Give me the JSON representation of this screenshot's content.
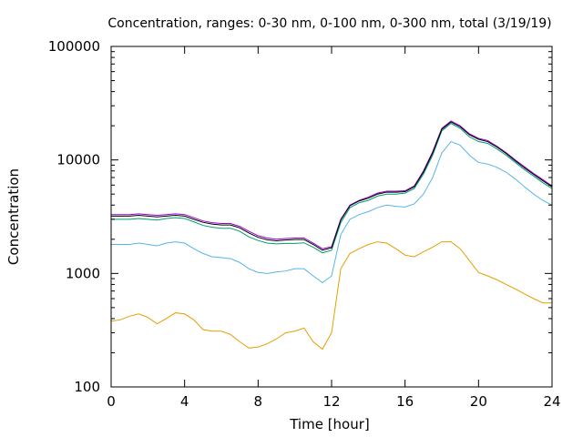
{
  "chart_data": {
    "type": "line",
    "title": "Concentration, ranges: 0-30 nm, 0-100 nm, 0-300 nm, total (3/19/19)",
    "xlabel": "Time [hour]",
    "ylabel": "Concentration",
    "xlim": [
      0,
      24
    ],
    "ylim": [
      100,
      100000
    ],
    "yscale": "log",
    "xticks": [
      0,
      4,
      8,
      12,
      16,
      20,
      24
    ],
    "xtick_labels": [
      "0",
      "4",
      "8",
      "12",
      "16",
      "20",
      "24"
    ],
    "yticks": [
      100,
      1000,
      10000,
      100000
    ],
    "ytick_labels": [
      "100",
      "1000",
      "10000",
      "100000"
    ],
    "grid": false,
    "legend": "none",
    "x": [
      0,
      0.5,
      1,
      1.5,
      2,
      2.5,
      3,
      3.5,
      4,
      4.5,
      5,
      5.5,
      6,
      6.5,
      7,
      7.5,
      8,
      8.5,
      9,
      9.5,
      10,
      10.5,
      11,
      11.5,
      12,
      12.5,
      13,
      13.5,
      14,
      14.5,
      15,
      15.5,
      16,
      16.5,
      17,
      17.5,
      18,
      18.5,
      19,
      19.5,
      20,
      20.5,
      21,
      21.5,
      22,
      22.5,
      23,
      23.5,
      24
    ],
    "series": [
      {
        "color": "#e69f00",
        "values": [
          380,
          390,
          420,
          440,
          410,
          360,
          400,
          450,
          440,
          390,
          320,
          310,
          310,
          290,
          250,
          220,
          225,
          240,
          265,
          300,
          310,
          330,
          250,
          215,
          300,
          1100,
          1500,
          1650,
          1800,
          1900,
          1850,
          1650,
          1450,
          1400,
          1550,
          1700,
          1900,
          1900,
          1650,
          1300,
          1020,
          950,
          880,
          800,
          730,
          660,
          600,
          550,
          550
        ]
      },
      {
        "color": "#56b4e9",
        "values": [
          1800,
          1800,
          1800,
          1850,
          1800,
          1750,
          1850,
          1900,
          1850,
          1650,
          1500,
          1400,
          1380,
          1350,
          1250,
          1100,
          1020,
          1000,
          1030,
          1050,
          1100,
          1100,
          950,
          830,
          950,
          2200,
          3000,
          3300,
          3500,
          3800,
          4000,
          3900,
          3850,
          4100,
          5000,
          7000,
          11500,
          14500,
          13500,
          11000,
          9500,
          9200,
          8600,
          7800,
          6800,
          5800,
          5000,
          4400,
          4000
        ]
      },
      {
        "color": "#009e73",
        "values": [
          3000,
          3000,
          3000,
          3050,
          3000,
          2950,
          3050,
          3100,
          3050,
          2850,
          2650,
          2550,
          2500,
          2500,
          2350,
          2100,
          1950,
          1850,
          1820,
          1840,
          1840,
          1860,
          1700,
          1520,
          1600,
          2800,
          3800,
          4200,
          4400,
          4800,
          5000,
          5000,
          5100,
          5600,
          7500,
          11000,
          18000,
          21000,
          19000,
          16000,
          14500,
          14000,
          12500,
          11000,
          9500,
          8200,
          7200,
          6300,
          5600
        ]
      },
      {
        "color": "#9400d3",
        "values": [
          3300,
          3300,
          3300,
          3350,
          3300,
          3250,
          3300,
          3350,
          3300,
          3100,
          2900,
          2800,
          2750,
          2750,
          2600,
          2350,
          2150,
          2050,
          2000,
          2030,
          2050,
          2050,
          1850,
          1650,
          1720,
          3000,
          4000,
          4400,
          4700,
          5100,
          5300,
          5300,
          5350,
          5900,
          8000,
          11800,
          19000,
          22000,
          20000,
          17000,
          15500,
          14800,
          13200,
          11600,
          10000,
          8700,
          7600,
          6700,
          5900
        ]
      },
      {
        "color": "#000000",
        "values": [
          3200,
          3200,
          3200,
          3250,
          3200,
          3150,
          3200,
          3250,
          3200,
          3000,
          2820,
          2720,
          2670,
          2670,
          2520,
          2270,
          2080,
          1980,
          1940,
          1970,
          1990,
          1990,
          1800,
          1600,
          1680,
          2950,
          3950,
          4350,
          4600,
          5000,
          5200,
          5200,
          5250,
          5800,
          7800,
          11500,
          18600,
          21600,
          19600,
          16700,
          15200,
          14500,
          13000,
          11400,
          9800,
          8500,
          7450,
          6550,
          5800
        ]
      }
    ]
  }
}
